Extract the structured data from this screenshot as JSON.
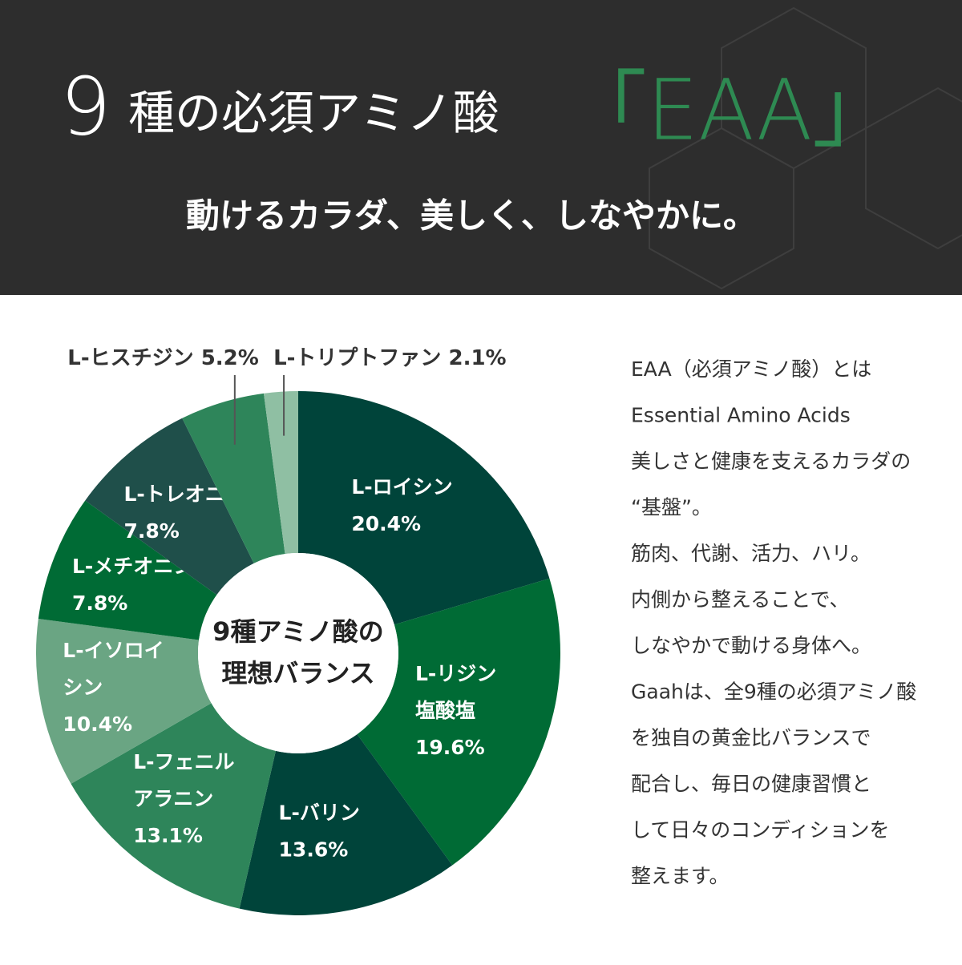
{
  "header": {
    "title_number": "9",
    "title_text": "種の必須アミノ酸",
    "title_eaa": "「EAA」",
    "subtitle": "動けるカラダ、美しく、しなやかに。"
  },
  "chart_data": {
    "type": "donut",
    "center_label": [
      "9種アミノ酸の",
      "理想バランス"
    ],
    "categories": [
      [
        "L-ロイシン"
      ],
      [
        "L-リジン",
        "塩酸塩"
      ],
      [
        "L-バリン"
      ],
      [
        "L-フェニル",
        "アラニン"
      ],
      [
        "L-イソロイ",
        "シン"
      ],
      [
        "L-メチオニン"
      ],
      [
        "L-トレオニン"
      ],
      [
        "L-ヒスチジン"
      ],
      [
        "L-トリプトファン"
      ]
    ],
    "values": [
      20.4,
      19.6,
      13.6,
      13.1,
      10.4,
      7.8,
      7.8,
      5.2,
      2.1
    ],
    "value_labels": [
      "20.4%",
      "19.6%",
      "13.6%",
      "13.1%",
      "10.4%",
      "7.8%",
      "7.8%",
      "5.2%",
      "2.1%"
    ],
    "colors": [
      "#00443a",
      "#006b35",
      "#00443a",
      "#2e855a",
      "#6aa583",
      "#006b35",
      "#1f4f4a",
      "#2e855a",
      "#8fbfa3"
    ]
  },
  "description": [
    "EAA（必須アミノ酸）とは",
    "Essential Amino Acids",
    "美しさと健康を支えるカラダの",
    "“基盤”。",
    "筋肉、代謝、活力、ハリ。",
    "内側から整えることで、",
    "しなやかで動ける身体へ。",
    "Gaahは、全9種の必須アミノ酸",
    "を独自の黄金比バランスで",
    "配合し、毎日の健康習慣と",
    "して日々のコンディションを",
    "整えます。"
  ]
}
